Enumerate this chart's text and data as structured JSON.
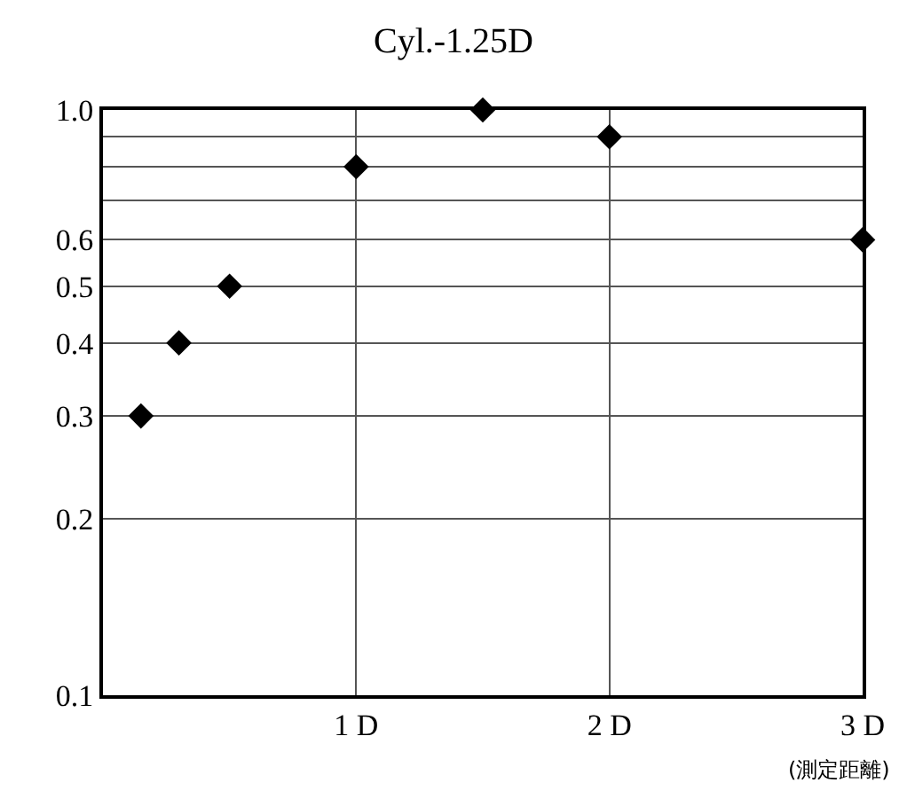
{
  "chart_data": {
    "type": "scatter",
    "title": "Cyl.-1.25D",
    "xlabel": "(測定距離)",
    "x": [
      0.15,
      0.3,
      0.5,
      1.0,
      1.5,
      2.0,
      3.0
    ],
    "series": [
      {
        "color": "#000000",
        "values": [
          0.3,
          0.4,
          0.5,
          0.8,
          1.0,
          0.9,
          0.6
        ]
      }
    ],
    "marker": "diamond",
    "log": "y",
    "grid": true,
    "xlim": [
      0,
      3
    ],
    "xticks": [
      {
        "value": 1,
        "label": "1 D"
      },
      {
        "value": 2,
        "label": "2 D"
      },
      {
        "value": 3,
        "label": "3 D"
      }
    ],
    "ylim": [
      0.1,
      1.0
    ],
    "yticks": [
      0.1,
      0.2,
      0.3,
      0.4,
      0.5,
      0.6,
      {
        "value": 0.7,
        "label": null
      },
      {
        "value": 0.8,
        "label": null
      },
      {
        "value": 0.9,
        "label": null
      },
      {
        "value": 1.0,
        "label": "1.0"
      }
    ]
  }
}
